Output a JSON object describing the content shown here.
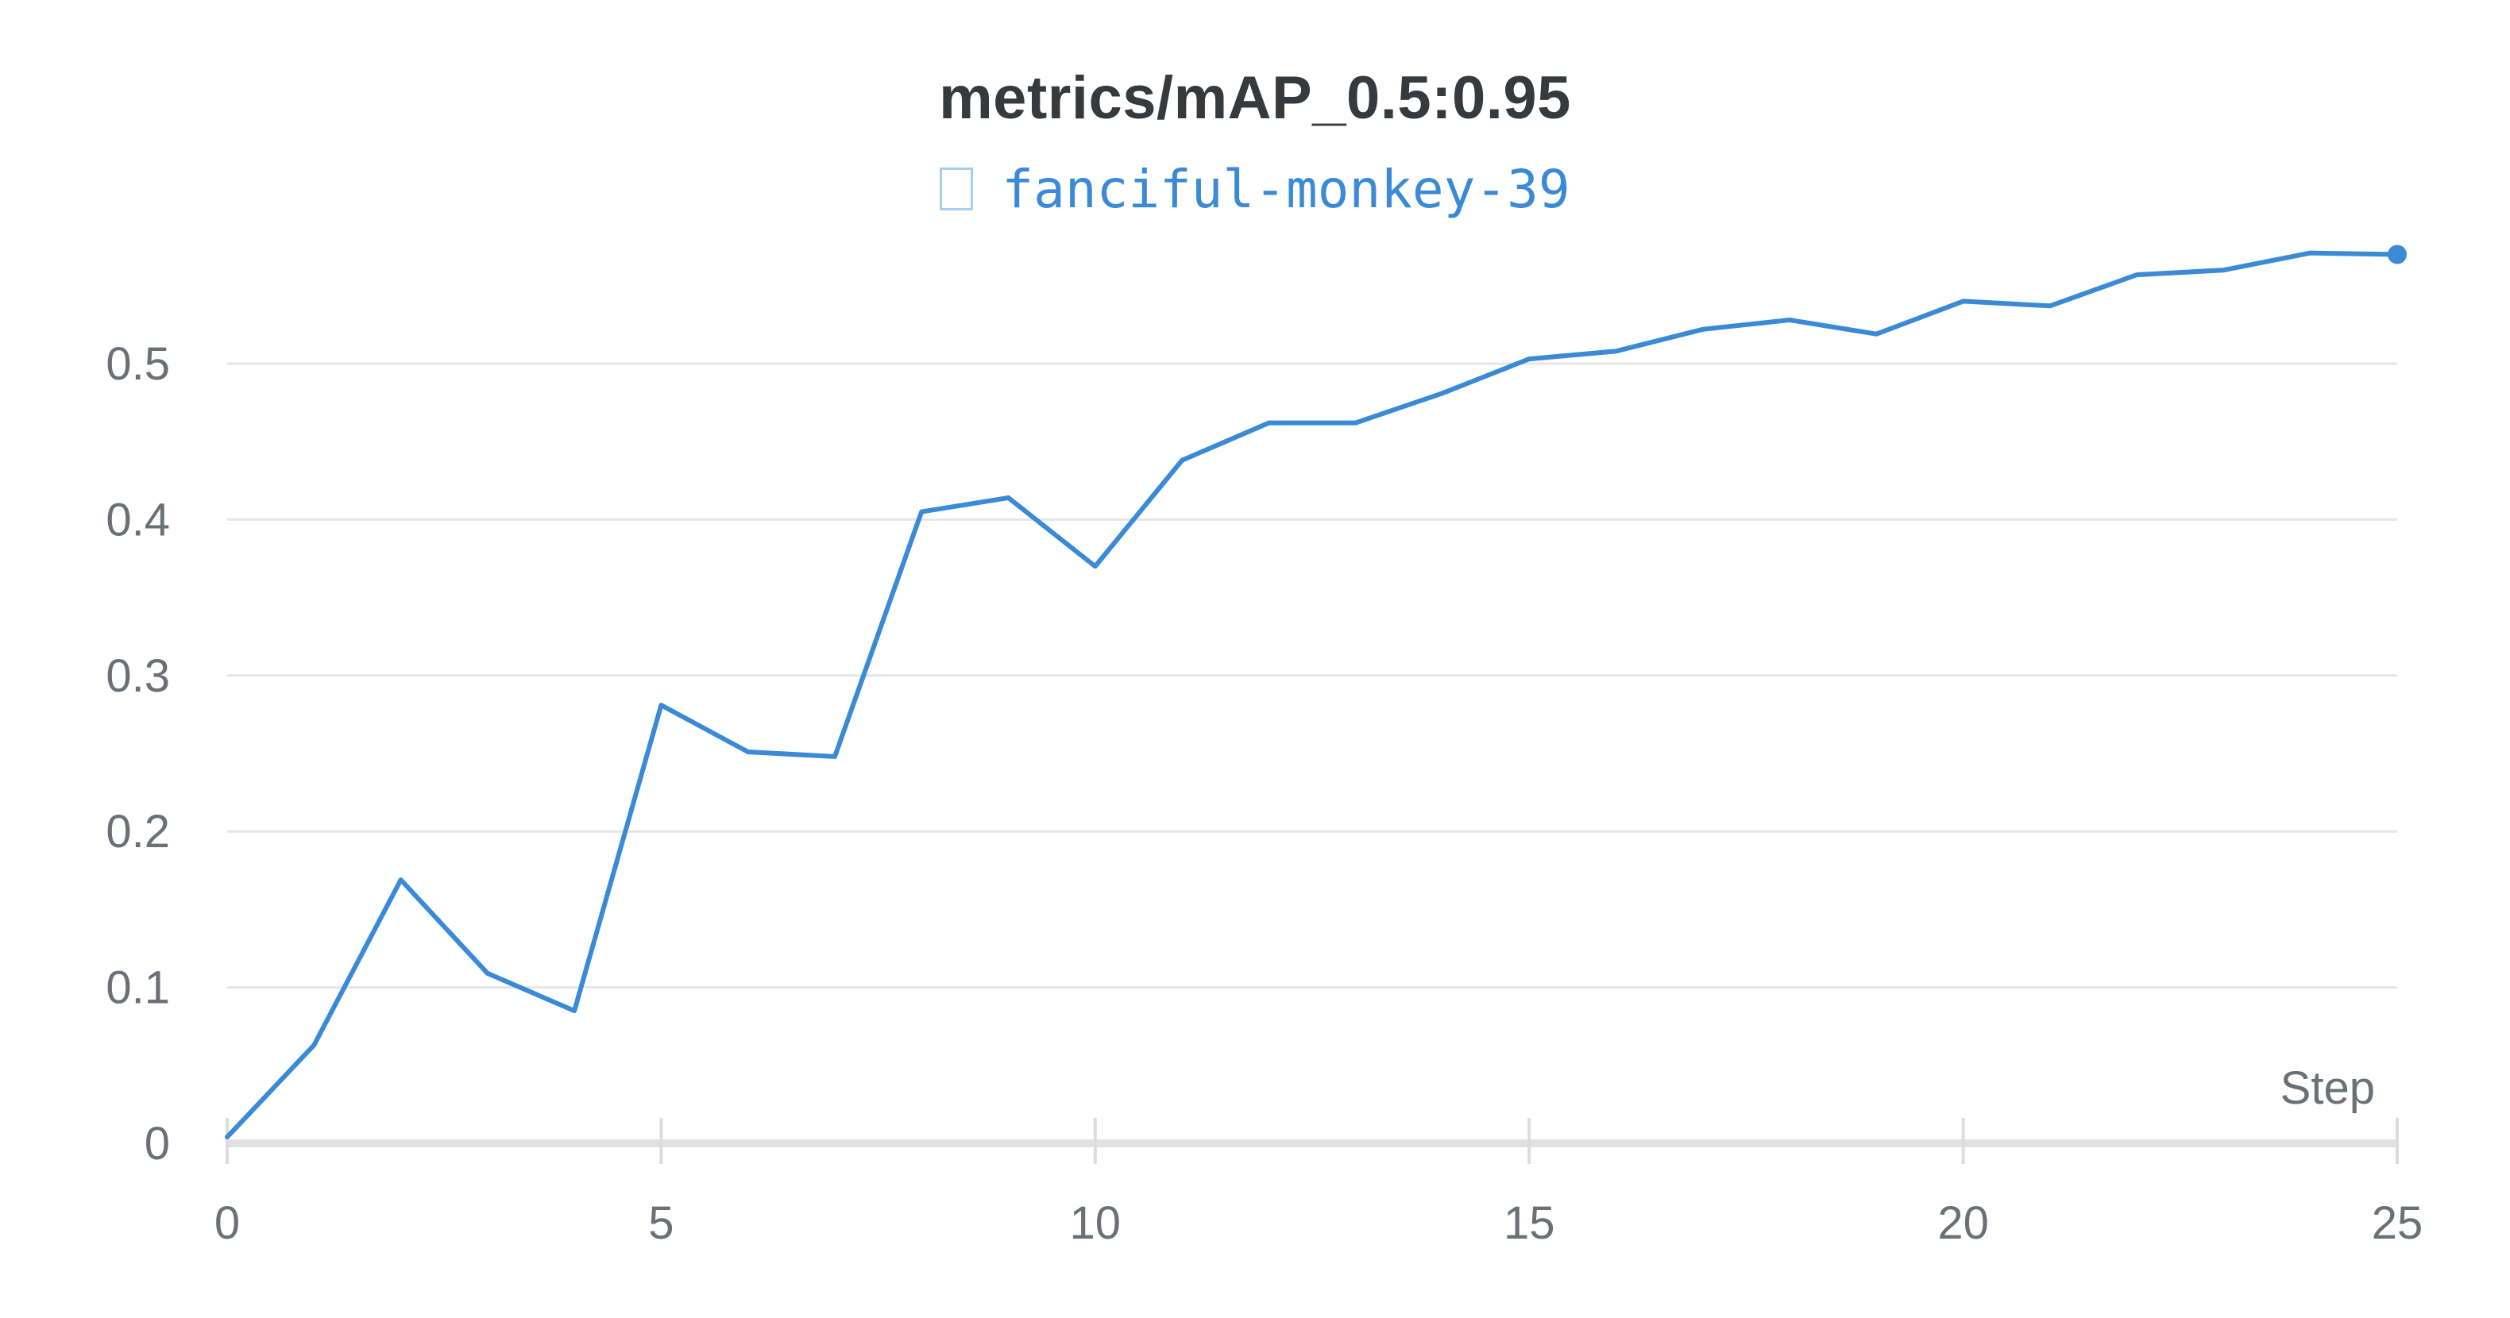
{
  "chart_data": {
    "type": "line",
    "title": "metrics/mAP_0.5:0.95",
    "xlabel": "Step",
    "ylabel": "",
    "xlim": [
      0,
      25
    ],
    "ylim": [
      0,
      0.58
    ],
    "grid": true,
    "legend_position": "top",
    "x_ticks": [
      "0",
      "5",
      "10",
      "15",
      "20",
      "25"
    ],
    "x_tick_values": [
      0,
      5,
      10,
      15,
      20,
      25
    ],
    "y_ticks": [
      "0",
      "0.1",
      "0.2",
      "0.3",
      "0.4",
      "0.5"
    ],
    "y_tick_values": [
      0,
      0.1,
      0.2,
      0.3,
      0.4,
      0.5
    ],
    "series": [
      {
        "name": "fanciful-monkey-39",
        "color": "#3b8ad6",
        "x": [
          0,
          1,
          2,
          3,
          4,
          5,
          6,
          7,
          8,
          9,
          10,
          11,
          12,
          13,
          14,
          15,
          16,
          17,
          18,
          19,
          20,
          21,
          22,
          23,
          24,
          25
        ],
        "y": [
          0.004,
          0.063,
          0.169,
          0.109,
          0.085,
          0.281,
          0.251,
          0.248,
          0.405,
          0.414,
          0.37,
          0.438,
          0.462,
          0.462,
          0.481,
          0.503,
          0.508,
          0.522,
          0.528,
          0.519,
          0.54,
          0.537,
          0.557,
          0.56,
          0.571,
          0.57
        ]
      }
    ]
  }
}
